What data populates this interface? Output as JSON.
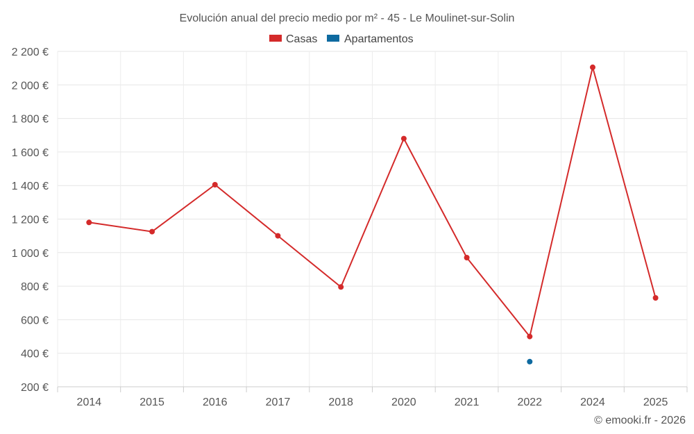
{
  "chart_data": {
    "type": "line",
    "title": "Evolución anual del precio medio por m² - 45 - Le Moulinet-sur-Solin",
    "categories": [
      "2014",
      "2015",
      "2016",
      "2017",
      "2018",
      "2020",
      "2021",
      "2022",
      "2024",
      "2025"
    ],
    "series": [
      {
        "name": "Casas",
        "color": "#d42a2a",
        "values": [
          1180,
          1125,
          1405,
          1100,
          795,
          1680,
          970,
          500,
          2105,
          730
        ]
      },
      {
        "name": "Apartamentos",
        "color": "#0e6aa0",
        "values": [
          null,
          null,
          null,
          null,
          null,
          null,
          null,
          350,
          null,
          null
        ]
      }
    ],
    "ylim": [
      200,
      2200
    ],
    "yticks": [
      200,
      400,
      600,
      800,
      1000,
      1200,
      1400,
      1600,
      1800,
      2000,
      2200
    ],
    "ytick_labels": [
      "200 €",
      "400 €",
      "600 €",
      "800 €",
      "1 000 €",
      "1 200 €",
      "1 400 €",
      "1 600 €",
      "1 800 €",
      "2 000 €",
      "2 200 €"
    ],
    "xlabel": "",
    "ylabel": "",
    "grid": true,
    "legend_position": "top-center"
  },
  "credit": "© emooki.fr - 2026"
}
